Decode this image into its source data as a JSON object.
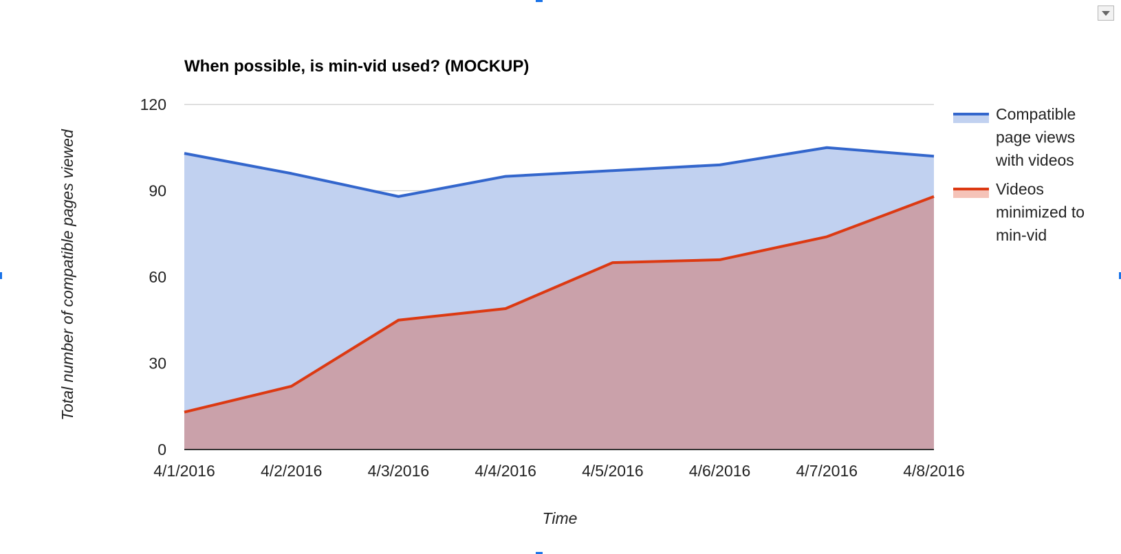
{
  "chart_data": {
    "type": "area",
    "title": "When possible, is min-vid used? (MOCKUP)",
    "xlabel": "Time",
    "ylabel": "Total number of compatible pages viewed",
    "categories": [
      "4/1/2016",
      "4/2/2016",
      "4/3/2016",
      "4/4/2016",
      "4/5/2016",
      "4/6/2016",
      "4/7/2016",
      "4/8/2016"
    ],
    "ylim": [
      0,
      120
    ],
    "yticks": [
      0,
      30,
      60,
      90,
      120
    ],
    "grid": true,
    "stacked": false,
    "legend_position": "right",
    "series": [
      {
        "name": "Compatible page views with videos",
        "legend_lines": [
          "Compatible",
          "page views",
          "with videos"
        ],
        "color": "#3366cc",
        "fill": "#c1d1f0",
        "values": [
          103,
          96,
          88,
          95,
          97,
          99,
          105,
          102
        ]
      },
      {
        "name": "Videos minimized to min-vid",
        "legend_lines": [
          "Videos",
          "minimized to",
          "min-vid"
        ],
        "color": "#dc3912",
        "fill": "#f5c3b8",
        "overlap_fill": "#caa1aa",
        "values": [
          13,
          22,
          45,
          49,
          65,
          66,
          74,
          88
        ]
      }
    ]
  }
}
